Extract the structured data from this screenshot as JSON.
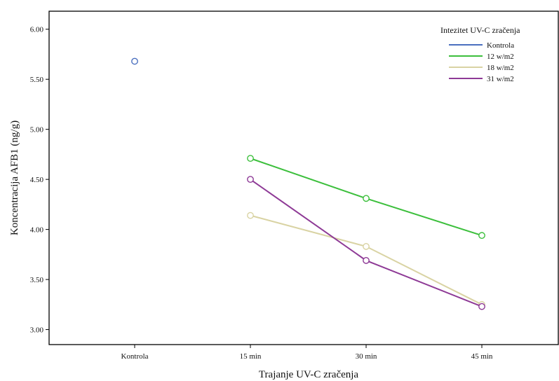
{
  "chart_data": {
    "type": "line",
    "xlabel": "Trajanje UV-C zračenja",
    "ylabel": "Koncentracija AFB1 (ng/g)",
    "categories": [
      "Kontrola",
      "15 min",
      "30 min",
      "45 min"
    ],
    "ylim": [
      2.85,
      6.18
    ],
    "yticks": [
      "3.00",
      "3.50",
      "4.00",
      "4.50",
      "5.00",
      "5.50",
      "6.00"
    ],
    "grid": false,
    "legend": {
      "title": "Intezitet UV-C zračenja",
      "position": "top-right"
    },
    "series": [
      {
        "name": "Kontrola",
        "color": "#4a6fbf",
        "values": [
          5.68,
          null,
          null,
          null
        ]
      },
      {
        "name": "12 w/m2",
        "color": "#3cbf3c",
        "values": [
          null,
          4.71,
          4.31,
          3.94
        ]
      },
      {
        "name": "18 w/m2",
        "color": "#d9d3a3",
        "values": [
          null,
          4.14,
          3.83,
          3.25
        ]
      },
      {
        "name": "31 w/m2",
        "color": "#8e3a96",
        "values": [
          null,
          4.5,
          3.69,
          3.23
        ]
      }
    ]
  }
}
